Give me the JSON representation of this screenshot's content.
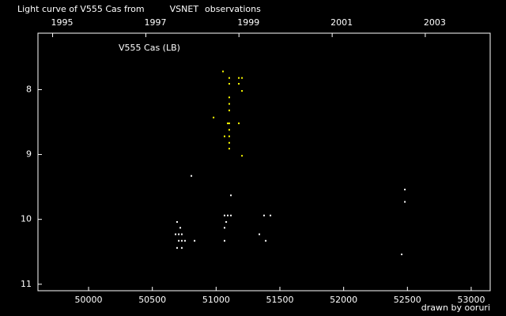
{
  "chart_data": {
    "type": "scatter",
    "title_parts": [
      "Light curve of V555 Cas from",
      "VSNET",
      "observations"
    ],
    "title_colors": [
      "#ffffff",
      "#ffff00",
      "#ffffff"
    ],
    "label": "V555 Cas (LB)",
    "credit": "drawn by ooruri",
    "credit_color": "#00ffff",
    "xlim": [
      49603,
      53149
    ],
    "xticks": [
      50000,
      50500,
      51000,
      51500,
      52000,
      52500,
      53000
    ],
    "x2ticks": [
      {
        "value": 49718,
        "label": "1995"
      },
      {
        "value": 50449,
        "label": "1997"
      },
      {
        "value": 51179,
        "label": "1999"
      },
      {
        "value": 51910,
        "label": "2001"
      },
      {
        "value": 52640,
        "label": "2003"
      }
    ],
    "ylim": [
      7.13,
      11.1
    ],
    "y_inverted": true,
    "yticks": [
      8,
      9,
      10,
      11
    ],
    "series": [
      {
        "color": "#ffffff",
        "x": [
          50806,
          50694,
          50719,
          50682,
          50707,
          50731,
          50831,
          50707,
          50731,
          50756,
          50694,
          50731,
          51116,
          51066,
          51091,
          51116,
          51079,
          51066,
          51066,
          51376,
          51426,
          51339,
          51389,
          52480,
          52480,
          52455
        ],
        "values": [
          9.33,
          10.04,
          10.13,
          10.23,
          10.23,
          10.23,
          10.33,
          10.33,
          10.33,
          10.33,
          10.44,
          10.44,
          9.63,
          9.94,
          9.94,
          9.94,
          10.04,
          10.13,
          10.33,
          9.94,
          9.94,
          10.23,
          10.33,
          9.54,
          9.73,
          10.54
        ]
      },
      {
        "color": "#ffff00",
        "x": [
          51054,
          51103,
          51178,
          51203,
          51103,
          51178,
          51203,
          51103,
          51103,
          51103,
          50980,
          51103,
          51091,
          51178,
          51103,
          51066,
          51103,
          51103,
          51103,
          51203
        ],
        "values": [
          7.72,
          7.82,
          7.82,
          7.82,
          7.91,
          7.91,
          8.02,
          8.12,
          8.22,
          8.32,
          8.43,
          8.52,
          8.52,
          8.52,
          8.62,
          8.72,
          8.72,
          8.82,
          8.91,
          9.02
        ]
      }
    ]
  }
}
